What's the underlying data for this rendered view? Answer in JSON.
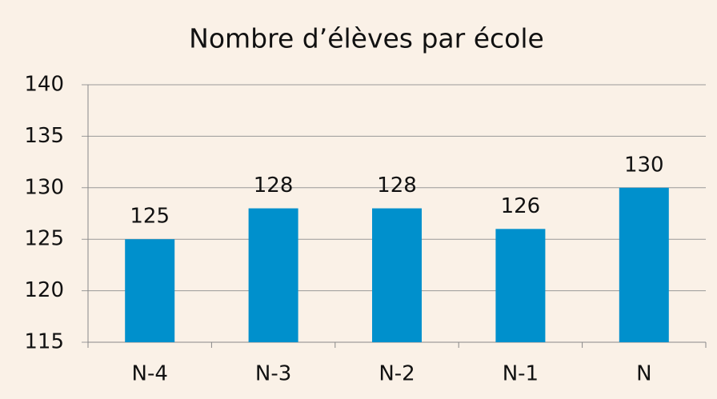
{
  "chart_data": {
    "type": "bar",
    "title": "Nombre d’élèves par école",
    "categories": [
      "N-4",
      "N-3",
      "N-2",
      "N-1",
      "N"
    ],
    "values": [
      125,
      128,
      128,
      126,
      130
    ],
    "color": "#0090cc",
    "ylim": [
      115,
      140
    ],
    "yticks": [
      115,
      120,
      125,
      130,
      135,
      140
    ],
    "grid": true,
    "data_labels": true
  }
}
